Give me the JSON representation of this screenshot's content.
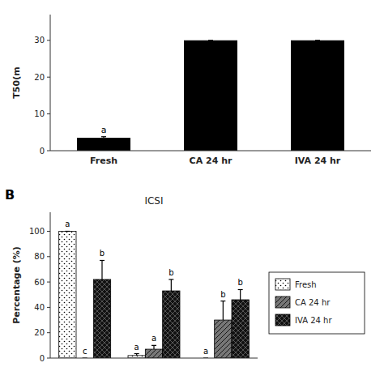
{
  "chart_data": [
    {
      "type": "bar",
      "categories": [
        "Fresh",
        "CA 24 hr",
        "IVA 24 hr"
      ],
      "values": [
        3.5,
        30,
        30
      ],
      "errors": [
        0.3,
        0,
        0
      ],
      "color": "#000000",
      "ylabel": "T50(m",
      "ylim": [
        0,
        37
      ],
      "yticks": [
        0,
        10,
        20,
        30
      ],
      "annotations": [
        {
          "text": "a",
          "category": "Fresh"
        }
      ],
      "grid": false
    },
    {
      "type": "bar",
      "title": "ICSI",
      "panel_label": "B",
      "ylabel": "Percentage (%)",
      "categories": [
        null,
        null,
        null
      ],
      "series": [
        {
          "name": "Fresh",
          "color": "#ffffff",
          "values": [
            100,
            2,
            0
          ],
          "errors": [
            0,
            1.5,
            0
          ],
          "letters": [
            "a",
            "a",
            "a"
          ]
        },
        {
          "name": "CA 24 hr",
          "color": "#777777",
          "values": [
            0,
            7,
            30
          ],
          "errors": [
            0,
            3,
            15
          ],
          "letters": [
            "c",
            "a",
            "b"
          ]
        },
        {
          "name": "IVA 24 hr",
          "color": "#111111",
          "values": [
            62,
            53,
            46
          ],
          "errors": [
            15,
            9,
            8
          ],
          "letters": [
            "b",
            "b",
            "b"
          ]
        }
      ],
      "ylim": [
        0,
        115
      ],
      "yticks": [
        0,
        20,
        40,
        60,
        80,
        100
      ],
      "grid": false,
      "legend": "right",
      "tick_labels": "y"
    }
  ]
}
